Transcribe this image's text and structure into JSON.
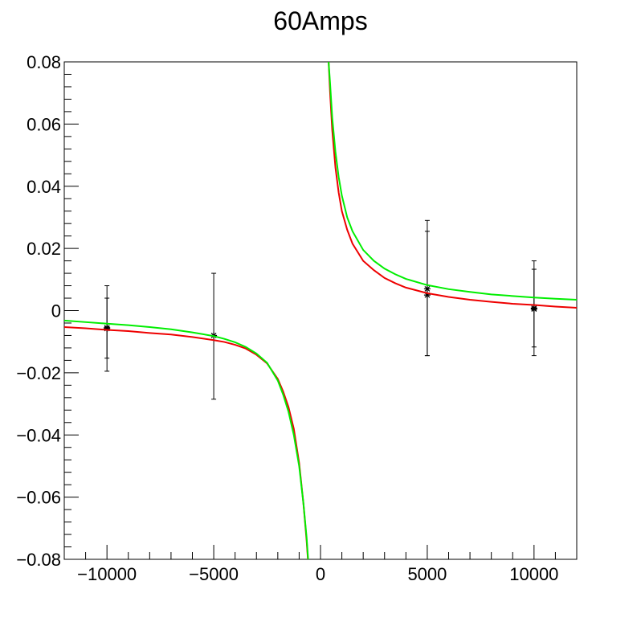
{
  "chart_data": {
    "type": "scatter",
    "title": "60Amps",
    "xlabel": "",
    "ylabel": "",
    "xlim": [
      -12000,
      12000
    ],
    "ylim": [
      -0.08,
      0.08
    ],
    "x_ticks": [
      -10000,
      -5000,
      0,
      5000,
      10000
    ],
    "x_tick_labels": [
      "−10000",
      "−5000",
      "0",
      "5000",
      "10000"
    ],
    "y_ticks": [
      0.08,
      0.06,
      0.04,
      0.02,
      0,
      -0.02,
      -0.04,
      -0.06,
      -0.08
    ],
    "y_tick_labels": [
      "0.08",
      "0.06",
      "0.04",
      "0.02",
      "0",
      "−0.02",
      "−0.04",
      "−0.06",
      "−0.08"
    ],
    "grid": false,
    "legend": "none",
    "series": [
      {
        "kind": "errorbar",
        "color": "#000000",
        "marker": "star",
        "points": [
          {
            "x": -10000,
            "y": -0.0055,
            "yerr_low": 0.014,
            "yerr_high": 0.0135
          },
          {
            "x": -5000,
            "y": -0.008,
            "yerr_low": 0.0205,
            "yerr_high": 0.02
          },
          {
            "x": 5000,
            "y": 0.007,
            "yerr_low": 0.0215,
            "yerr_high": 0.022
          },
          {
            "x": 10000,
            "y": 0.0005,
            "yerr_low": 0.015,
            "yerr_high": 0.0155
          }
        ]
      },
      {
        "kind": "errorbar",
        "color": "#000000",
        "marker": "star",
        "points": [
          {
            "x": -10000,
            "y": -0.0058,
            "yerr_low": 0.0095,
            "yerr_high": 0.0098
          },
          {
            "x": 5000,
            "y": 0.005,
            "yerr_low": 0.0195,
            "yerr_high": 0.0205
          },
          {
            "x": 10000,
            "y": 0.0008,
            "yerr_low": 0.0125,
            "yerr_high": 0.0125
          }
        ]
      },
      {
        "kind": "line",
        "color": "#ee0000",
        "points": [
          {
            "x": -12000,
            "y": -0.0053
          },
          {
            "x": -11000,
            "y": -0.0057
          },
          {
            "x": -10000,
            "y": -0.0062
          },
          {
            "x": -9000,
            "y": -0.0066
          },
          {
            "x": -8000,
            "y": -0.0072
          },
          {
            "x": -7000,
            "y": -0.0077
          },
          {
            "x": -6000,
            "y": -0.0085
          },
          {
            "x": -5000,
            "y": -0.0095
          },
          {
            "x": -4500,
            "y": -0.0101
          },
          {
            "x": -4000,
            "y": -0.011
          },
          {
            "x": -3500,
            "y": -0.0122
          },
          {
            "x": -3000,
            "y": -0.0142
          },
          {
            "x": -2500,
            "y": -0.017
          },
          {
            "x": -2000,
            "y": -0.022
          },
          {
            "x": -1750,
            "y": -0.026
          },
          {
            "x": -1500,
            "y": -0.031
          },
          {
            "x": -1250,
            "y": -0.038
          },
          {
            "x": -1000,
            "y": -0.049
          },
          {
            "x": -800,
            "y": -0.062
          },
          {
            "x": -650,
            "y": -0.074
          },
          {
            "x": -590,
            "y": -0.08
          },
          {
            "x": 380,
            "y": 0.08
          },
          {
            "x": 450,
            "y": 0.07
          },
          {
            "x": 550,
            "y": 0.058
          },
          {
            "x": 700,
            "y": 0.046
          },
          {
            "x": 850,
            "y": 0.038
          },
          {
            "x": 1000,
            "y": 0.032
          },
          {
            "x": 1250,
            "y": 0.026
          },
          {
            "x": 1500,
            "y": 0.0215
          },
          {
            "x": 2000,
            "y": 0.016
          },
          {
            "x": 2500,
            "y": 0.013
          },
          {
            "x": 3000,
            "y": 0.0105
          },
          {
            "x": 3500,
            "y": 0.0088
          },
          {
            "x": 4000,
            "y": 0.0074
          },
          {
            "x": 5000,
            "y": 0.0056
          },
          {
            "x": 6000,
            "y": 0.0044
          },
          {
            "x": 7000,
            "y": 0.0035
          },
          {
            "x": 8000,
            "y": 0.0028
          },
          {
            "x": 9000,
            "y": 0.0022
          },
          {
            "x": 10000,
            "y": 0.0018
          },
          {
            "x": 11000,
            "y": 0.0013
          },
          {
            "x": 12000,
            "y": 0.0009
          }
        ]
      },
      {
        "kind": "line",
        "color": "#00ee00",
        "points": [
          {
            "x": -12000,
            "y": -0.0032
          },
          {
            "x": -11000,
            "y": -0.0037
          },
          {
            "x": -10000,
            "y": -0.0042
          },
          {
            "x": -9000,
            "y": -0.0047
          },
          {
            "x": -8000,
            "y": -0.0053
          },
          {
            "x": -7000,
            "y": -0.006
          },
          {
            "x": -6000,
            "y": -0.007
          },
          {
            "x": -5000,
            "y": -0.0082
          },
          {
            "x": -4500,
            "y": -0.0091
          },
          {
            "x": -4000,
            "y": -0.0102
          },
          {
            "x": -3500,
            "y": -0.0117
          },
          {
            "x": -3000,
            "y": -0.0138
          },
          {
            "x": -2500,
            "y": -0.0168
          },
          {
            "x": -2000,
            "y": -0.0225
          },
          {
            "x": -1750,
            "y": -0.027
          },
          {
            "x": -1500,
            "y": -0.0325
          },
          {
            "x": -1250,
            "y": -0.04
          },
          {
            "x": -1000,
            "y": -0.05
          },
          {
            "x": -800,
            "y": -0.062
          },
          {
            "x": -650,
            "y": -0.073
          },
          {
            "x": -580,
            "y": -0.08
          },
          {
            "x": 380,
            "y": 0.08
          },
          {
            "x": 450,
            "y": 0.073
          },
          {
            "x": 550,
            "y": 0.062
          },
          {
            "x": 700,
            "y": 0.051
          },
          {
            "x": 850,
            "y": 0.043
          },
          {
            "x": 1000,
            "y": 0.037
          },
          {
            "x": 1250,
            "y": 0.03
          },
          {
            "x": 1500,
            "y": 0.0255
          },
          {
            "x": 2000,
            "y": 0.0195
          },
          {
            "x": 2500,
            "y": 0.016
          },
          {
            "x": 3000,
            "y": 0.0135
          },
          {
            "x": 3500,
            "y": 0.0117
          },
          {
            "x": 4000,
            "y": 0.0102
          },
          {
            "x": 5000,
            "y": 0.0082
          },
          {
            "x": 6000,
            "y": 0.0069
          },
          {
            "x": 7000,
            "y": 0.006
          },
          {
            "x": 8000,
            "y": 0.0052
          },
          {
            "x": 9000,
            "y": 0.0047
          },
          {
            "x": 10000,
            "y": 0.0042
          },
          {
            "x": 11000,
            "y": 0.0038
          },
          {
            "x": 12000,
            "y": 0.0035
          }
        ]
      }
    ]
  }
}
